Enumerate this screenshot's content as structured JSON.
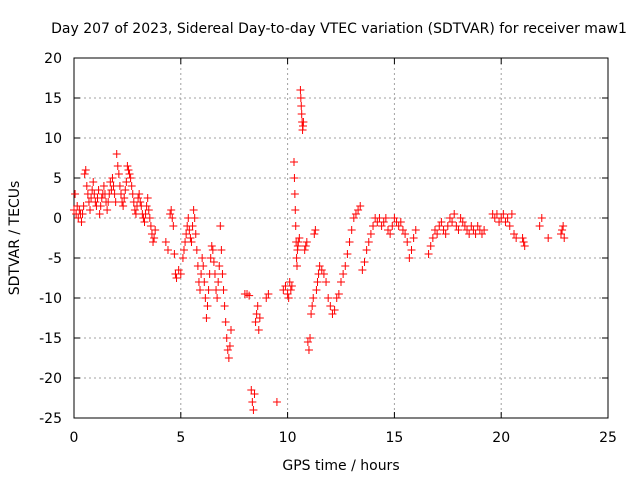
{
  "chart_data": {
    "type": "scatter",
    "title": "Day 207 of 2023, Sidereal Day-to-day VTEC variation (SDTVAR) for receiver maw1",
    "xlabel": "GPS time / hours",
    "ylabel": "SDTVAR / TECUs",
    "xlim": [
      0,
      25
    ],
    "ylim": [
      -25,
      20
    ],
    "xticks": [
      0,
      5,
      10,
      15,
      20,
      25
    ],
    "yticks": [
      -25,
      -20,
      -15,
      -10,
      -5,
      0,
      5,
      10,
      15,
      20
    ],
    "grid": true,
    "marker": "+",
    "color": "#ff0000",
    "series": [
      {
        "name": "SDTVAR",
        "points": [
          [
            0.0,
            1.0
          ],
          [
            0.05,
            3.0
          ],
          [
            0.1,
            0.5
          ],
          [
            0.15,
            1.5
          ],
          [
            0.2,
            0.0
          ],
          [
            0.25,
            1.0
          ],
          [
            0.3,
            0.5
          ],
          [
            0.35,
            -0.5
          ],
          [
            0.4,
            0.5
          ],
          [
            0.45,
            1.5
          ],
          [
            0.5,
            5.5
          ],
          [
            0.55,
            6.0
          ],
          [
            0.6,
            4.0
          ],
          [
            0.65,
            3.0
          ],
          [
            0.7,
            2.0
          ],
          [
            0.75,
            1.0
          ],
          [
            0.8,
            2.5
          ],
          [
            0.85,
            3.5
          ],
          [
            0.9,
            4.5
          ],
          [
            0.95,
            3.0
          ],
          [
            1.0,
            2.0
          ],
          [
            1.05,
            1.5
          ],
          [
            1.1,
            2.5
          ],
          [
            1.15,
            3.5
          ],
          [
            1.2,
            0.5
          ],
          [
            1.25,
            1.5
          ],
          [
            1.3,
            2.5
          ],
          [
            1.35,
            3.0
          ],
          [
            1.4,
            4.0
          ],
          [
            1.45,
            3.0
          ],
          [
            1.5,
            2.0
          ],
          [
            1.55,
            1.0
          ],
          [
            1.6,
            2.0
          ],
          [
            1.65,
            3.0
          ],
          [
            1.7,
            4.5
          ],
          [
            1.75,
            3.5
          ],
          [
            1.8,
            5.0
          ],
          [
            1.85,
            4.0
          ],
          [
            1.9,
            3.0
          ],
          [
            1.95,
            2.0
          ],
          [
            2.0,
            8.0
          ],
          [
            2.05,
            6.5
          ],
          [
            2.1,
            5.5
          ],
          [
            2.15,
            4.0
          ],
          [
            2.2,
            3.0
          ],
          [
            2.25,
            2.0
          ],
          [
            2.3,
            1.5
          ],
          [
            2.35,
            2.5
          ],
          [
            2.4,
            3.5
          ],
          [
            2.45,
            4.5
          ],
          [
            2.5,
            6.5
          ],
          [
            2.55,
            6.0
          ],
          [
            2.6,
            5.5
          ],
          [
            2.65,
            5.0
          ],
          [
            2.7,
            4.0
          ],
          [
            2.75,
            3.0
          ],
          [
            2.8,
            2.0
          ],
          [
            2.85,
            1.0
          ],
          [
            2.9,
            0.5
          ],
          [
            2.95,
            1.5
          ],
          [
            3.0,
            2.5
          ],
          [
            3.05,
            3.0
          ],
          [
            3.1,
            2.0
          ],
          [
            3.15,
            1.5
          ],
          [
            3.2,
            0.5
          ],
          [
            3.25,
            0.0
          ],
          [
            3.3,
            -0.5
          ],
          [
            3.35,
            0.5
          ],
          [
            3.4,
            1.5
          ],
          [
            3.45,
            2.5
          ],
          [
            3.5,
            1.0
          ],
          [
            3.55,
            0.0
          ],
          [
            3.6,
            -1.0
          ],
          [
            3.65,
            -2.0
          ],
          [
            3.7,
            -3.0
          ],
          [
            3.75,
            -2.5
          ],
          [
            3.8,
            -1.5
          ],
          [
            4.3,
            -3.0
          ],
          [
            4.4,
            -4.0
          ],
          [
            4.5,
            0.5
          ],
          [
            4.55,
            1.0
          ],
          [
            4.6,
            0.0
          ],
          [
            4.65,
            -1.0
          ],
          [
            4.7,
            -4.5
          ],
          [
            4.75,
            -7.0
          ],
          [
            4.8,
            -7.5
          ],
          [
            4.9,
            -6.5
          ],
          [
            5.0,
            -7.0
          ],
          [
            5.1,
            -5.0
          ],
          [
            5.15,
            -4.0
          ],
          [
            5.2,
            -3.0
          ],
          [
            5.25,
            -2.0
          ],
          [
            5.3,
            -1.0
          ],
          [
            5.35,
            0.0
          ],
          [
            5.4,
            -1.5
          ],
          [
            5.45,
            -2.5
          ],
          [
            5.5,
            -3.0
          ],
          [
            5.55,
            -1.0
          ],
          [
            5.6,
            1.0
          ],
          [
            5.65,
            0.0
          ],
          [
            5.7,
            -2.0
          ],
          [
            5.75,
            -4.0
          ],
          [
            5.8,
            -6.0
          ],
          [
            5.85,
            -8.0
          ],
          [
            5.9,
            -9.0
          ],
          [
            5.95,
            -7.0
          ],
          [
            6.0,
            -5.0
          ],
          [
            6.05,
            -6.0
          ],
          [
            6.1,
            -8.0
          ],
          [
            6.15,
            -10.0
          ],
          [
            6.2,
            -12.5
          ],
          [
            6.25,
            -11.0
          ],
          [
            6.3,
            -9.0
          ],
          [
            6.35,
            -7.0
          ],
          [
            6.4,
            -5.0
          ],
          [
            6.45,
            -3.5
          ],
          [
            6.5,
            -4.0
          ],
          [
            6.55,
            -5.5
          ],
          [
            6.6,
            -7.0
          ],
          [
            6.65,
            -9.0
          ],
          [
            6.7,
            -10.0
          ],
          [
            6.75,
            -8.0
          ],
          [
            6.8,
            -6.0
          ],
          [
            6.85,
            -1.0
          ],
          [
            6.9,
            -4.0
          ],
          [
            6.95,
            -7.0
          ],
          [
            7.0,
            -9.0
          ],
          [
            7.05,
            -11.0
          ],
          [
            7.1,
            -13.0
          ],
          [
            7.15,
            -15.0
          ],
          [
            7.2,
            -16.5
          ],
          [
            7.25,
            -17.5
          ],
          [
            7.3,
            -16.0
          ],
          [
            7.35,
            -14.0
          ],
          [
            8.0,
            -9.5
          ],
          [
            8.1,
            -9.5
          ],
          [
            8.2,
            -9.7
          ],
          [
            8.3,
            -21.5
          ],
          [
            8.35,
            -23.0
          ],
          [
            8.4,
            -24.0
          ],
          [
            8.45,
            -22.0
          ],
          [
            8.5,
            -13.0
          ],
          [
            8.55,
            -12.0
          ],
          [
            8.6,
            -11.0
          ],
          [
            8.65,
            -14.0
          ],
          [
            8.7,
            -12.5
          ],
          [
            9.0,
            -10.0
          ],
          [
            9.1,
            -9.5
          ],
          [
            9.5,
            -23.0
          ],
          [
            9.8,
            -9.0
          ],
          [
            9.9,
            -8.5
          ],
          [
            10.0,
            -9.5
          ],
          [
            10.05,
            -10.0
          ],
          [
            10.1,
            -8.0
          ],
          [
            10.15,
            -9.0
          ],
          [
            10.2,
            -8.5
          ],
          [
            10.3,
            7.0
          ],
          [
            10.32,
            5.0
          ],
          [
            10.34,
            3.0
          ],
          [
            10.36,
            1.0
          ],
          [
            10.38,
            -1.0
          ],
          [
            10.4,
            -3.0
          ],
          [
            10.42,
            -5.0
          ],
          [
            10.44,
            -6.0
          ],
          [
            10.46,
            -4.0
          ],
          [
            10.48,
            -3.5
          ],
          [
            10.5,
            -3.0
          ],
          [
            10.55,
            -2.5
          ],
          [
            10.6,
            16.0
          ],
          [
            10.62,
            15.0
          ],
          [
            10.64,
            14.0
          ],
          [
            10.66,
            13.0
          ],
          [
            10.68,
            12.0
          ],
          [
            10.7,
            11.0
          ],
          [
            10.72,
            11.5
          ],
          [
            10.74,
            12.0
          ],
          [
            10.8,
            -4.0
          ],
          [
            10.85,
            -3.5
          ],
          [
            10.9,
            -3.0
          ],
          [
            10.95,
            -15.5
          ],
          [
            11.0,
            -16.5
          ],
          [
            11.05,
            -15.0
          ],
          [
            11.1,
            -12.0
          ],
          [
            11.15,
            -11.0
          ],
          [
            11.2,
            -10.0
          ],
          [
            11.25,
            -2.0
          ],
          [
            11.3,
            -1.5
          ],
          [
            11.35,
            -9.0
          ],
          [
            11.4,
            -8.0
          ],
          [
            11.45,
            -7.0
          ],
          [
            11.5,
            -6.0
          ],
          [
            11.6,
            -6.5
          ],
          [
            11.7,
            -7.0
          ],
          [
            11.8,
            -8.0
          ],
          [
            11.9,
            -10.0
          ],
          [
            12.0,
            -11.0
          ],
          [
            12.1,
            -12.0
          ],
          [
            12.2,
            -11.5
          ],
          [
            12.3,
            -10.0
          ],
          [
            12.4,
            -9.5
          ],
          [
            12.5,
            -8.0
          ],
          [
            12.6,
            -7.0
          ],
          [
            12.7,
            -6.0
          ],
          [
            12.8,
            -4.5
          ],
          [
            12.9,
            -3.0
          ],
          [
            13.0,
            -1.5
          ],
          [
            13.1,
            0.0
          ],
          [
            13.2,
            0.5
          ],
          [
            13.3,
            1.0
          ],
          [
            13.4,
            1.5
          ],
          [
            13.5,
            -6.5
          ],
          [
            13.6,
            -5.5
          ],
          [
            13.7,
            -4.0
          ],
          [
            13.8,
            -3.0
          ],
          [
            13.9,
            -2.0
          ],
          [
            14.0,
            -1.0
          ],
          [
            14.1,
            0.0
          ],
          [
            14.2,
            -0.5
          ],
          [
            14.3,
            0.0
          ],
          [
            14.4,
            -1.0
          ],
          [
            14.5,
            -0.5
          ],
          [
            14.6,
            0.0
          ],
          [
            14.7,
            -1.5
          ],
          [
            14.8,
            -2.0
          ],
          [
            14.9,
            -1.0
          ],
          [
            15.0,
            0.0
          ],
          [
            15.1,
            -0.5
          ],
          [
            15.2,
            -1.0
          ],
          [
            15.3,
            -0.5
          ],
          [
            15.4,
            -1.5
          ],
          [
            15.5,
            -2.0
          ],
          [
            15.6,
            -3.0
          ],
          [
            15.7,
            -5.0
          ],
          [
            15.8,
            -4.0
          ],
          [
            15.9,
            -2.5
          ],
          [
            16.0,
            -1.5
          ],
          [
            16.6,
            -4.5
          ],
          [
            16.7,
            -3.5
          ],
          [
            16.8,
            -2.5
          ],
          [
            16.9,
            -1.5
          ],
          [
            17.0,
            -2.0
          ],
          [
            17.1,
            -1.0
          ],
          [
            17.2,
            -0.5
          ],
          [
            17.3,
            -1.5
          ],
          [
            17.4,
            -2.0
          ],
          [
            17.5,
            -1.0
          ],
          [
            17.6,
            0.0
          ],
          [
            17.7,
            -0.5
          ],
          [
            17.8,
            0.5
          ],
          [
            17.9,
            -1.0
          ],
          [
            18.0,
            -1.5
          ],
          [
            18.1,
            0.0
          ],
          [
            18.2,
            -0.5
          ],
          [
            18.3,
            -1.0
          ],
          [
            18.4,
            -1.5
          ],
          [
            18.5,
            -2.0
          ],
          [
            18.6,
            -1.0
          ],
          [
            18.7,
            -1.5
          ],
          [
            18.8,
            -2.0
          ],
          [
            18.9,
            -1.0
          ],
          [
            19.0,
            -1.5
          ],
          [
            19.1,
            -2.0
          ],
          [
            19.2,
            -1.5
          ],
          [
            19.6,
            0.5
          ],
          [
            19.7,
            0.0
          ],
          [
            19.8,
            0.5
          ],
          [
            19.9,
            -0.5
          ],
          [
            20.0,
            0.0
          ],
          [
            20.1,
            0.5
          ],
          [
            20.2,
            -0.5
          ],
          [
            20.3,
            0.0
          ],
          [
            20.4,
            -1.0
          ],
          [
            20.5,
            0.5
          ],
          [
            20.6,
            -2.0
          ],
          [
            20.7,
            -2.5
          ],
          [
            21.0,
            -2.5
          ],
          [
            21.05,
            -3.0
          ],
          [
            21.1,
            -3.5
          ],
          [
            21.8,
            -1.0
          ],
          [
            21.9,
            0.0
          ],
          [
            22.2,
            -2.5
          ],
          [
            22.8,
            -2.0
          ],
          [
            22.85,
            -1.5
          ],
          [
            22.9,
            -1.0
          ],
          [
            22.95,
            -2.5
          ]
        ]
      }
    ]
  }
}
